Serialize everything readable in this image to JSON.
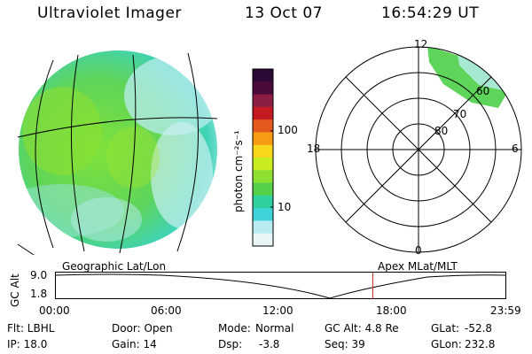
{
  "header": {
    "instrument": "Ultraviolet Imager",
    "date": "13 Oct 07",
    "time": "16:54:29 UT"
  },
  "colorbar": {
    "label": "photon cm⁻²s⁻¹",
    "ticks": [
      "100",
      "10"
    ],
    "colors": [
      "#2a0a35",
      "#4a0b3a",
      "#8c1e45",
      "#c41b22",
      "#e55a1c",
      "#f79a16",
      "#f7d81a",
      "#c8ec20",
      "#8ee030",
      "#56d04a",
      "#2fd0a0",
      "#3ed3d8",
      "#b8ecf0",
      "#e8f6f8"
    ]
  },
  "polar_plot": {
    "mlt_labels": {
      "top": "12",
      "right": "6",
      "bottom": "0",
      "left": "18"
    },
    "lat_labels": [
      "60",
      "70",
      "80"
    ]
  },
  "timeline": {
    "y_label": "GC Alt",
    "y_ticks": [
      "9.0",
      "1.8"
    ],
    "left_caption": "Geographic Lat/Lon",
    "right_caption": "Apex MLat/MLT",
    "time_ticks": [
      "00:00",
      "06:00",
      "12:00",
      "18:00",
      "23:59"
    ],
    "current_time_fraction": 0.705
  },
  "status": {
    "col1": [
      "Flt: LBHL",
      "IP: 18.0"
    ],
    "col2": [
      "Door: Open",
      "Gain: 14"
    ],
    "col3a": [
      "Mode:",
      "Dsp:"
    ],
    "col3b": [
      "Normal",
      "-3.8"
    ],
    "col4": [
      "GC Alt: 4.8 Re",
      "Seq: 39"
    ],
    "col5a": [
      "GLat:",
      "GLon:"
    ],
    "col5b": [
      "-52.8",
      "232.8"
    ]
  }
}
